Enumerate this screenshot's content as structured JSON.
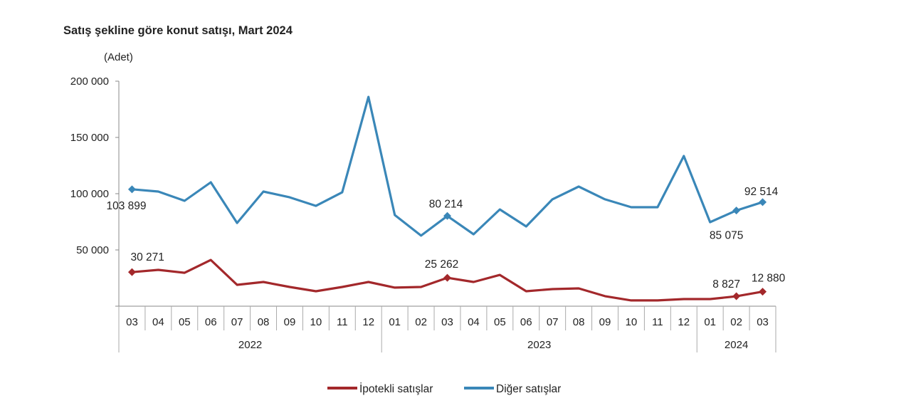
{
  "chart_data": {
    "type": "line",
    "title": "Satış şekline göre konut satışı, Mart 2024",
    "ylabel": "(Adet)",
    "xlabel": "",
    "ylim": [
      0,
      200000
    ],
    "yticks": [
      0,
      50000,
      100000,
      150000,
      200000
    ],
    "ytick_labels": [
      "",
      "50 000",
      "100 000",
      "150 000",
      "200 000"
    ],
    "grid": false,
    "legend_position": "bottom",
    "categories": [
      "03",
      "04",
      "05",
      "06",
      "07",
      "08",
      "09",
      "10",
      "11",
      "12",
      "01",
      "02",
      "03",
      "04",
      "05",
      "06",
      "07",
      "08",
      "09",
      "10",
      "11",
      "12",
      "01",
      "02",
      "03"
    ],
    "year_groups": [
      {
        "label": "2022",
        "count": 10
      },
      {
        "label": "2023",
        "count": 12
      },
      {
        "label": "2024",
        "count": 3
      }
    ],
    "series": [
      {
        "name": "İpotekli satışlar",
        "color": "#a3282b",
        "values": [
          30271,
          32300,
          29700,
          41100,
          19000,
          21500,
          17100,
          13300,
          17100,
          21500,
          16500,
          17100,
          25262,
          21500,
          27800,
          13300,
          15200,
          15800,
          8900,
          5100,
          5100,
          6300,
          6300,
          8827,
          12880
        ],
        "data_labels": [
          {
            "index": 0,
            "text": "30 271"
          },
          {
            "index": 12,
            "text": "25 262"
          },
          {
            "index": 23,
            "text": "8 827"
          },
          {
            "index": 24,
            "text": "12 880"
          }
        ]
      },
      {
        "name": "Diğer satışlar",
        "color": "#3a87b8",
        "values": [
          103899,
          101900,
          93700,
          110100,
          74000,
          101900,
          96800,
          89200,
          101200,
          186000,
          81000,
          62700,
          80214,
          63900,
          86000,
          70900,
          95000,
          106300,
          95000,
          88000,
          88000,
          133500,
          74700,
          85075,
          92514
        ],
        "data_labels": [
          {
            "index": 0,
            "text": "103 899"
          },
          {
            "index": 12,
            "text": "80 214"
          },
          {
            "index": 23,
            "text": "85 075"
          },
          {
            "index": 24,
            "text": "92 514"
          }
        ]
      }
    ]
  }
}
